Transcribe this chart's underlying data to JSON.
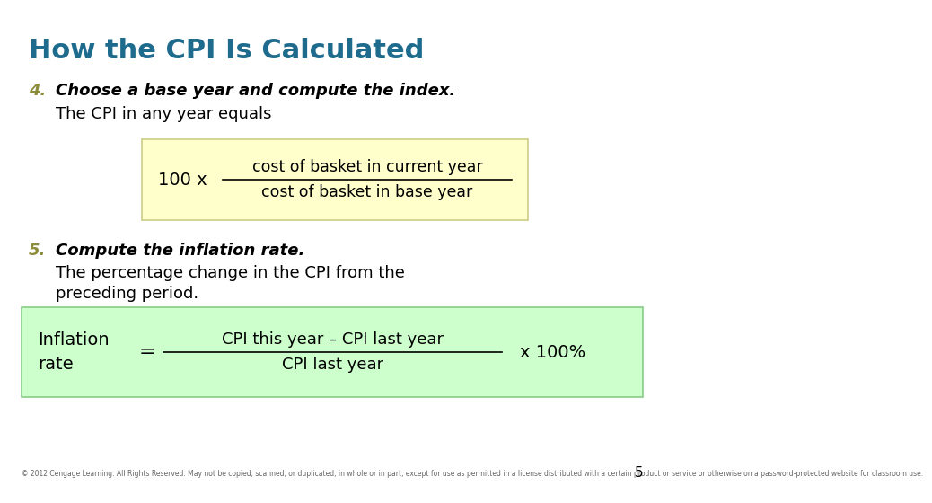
{
  "title": "How the CPI Is Calculated",
  "title_color": "#1F6B8E",
  "title_fontsize": 22,
  "bg_color": "#FFFFFF",
  "item4_number": "4.",
  "item4_bold": "Choose a base year and compute the index.",
  "item4_normal": "The CPI in any year equals",
  "item4_number_color": "#8B8B3A",
  "item4_text_color": "#000000",
  "box1_bg": "#FFFFCC",
  "box1_border": "#CCCC88",
  "box1_text_left": "100 x",
  "box1_numerator": "cost of basket in current year",
  "box1_denominator": "cost of basket in base year",
  "item5_number": "5.",
  "item5_bold": "Compute the inflation rate.",
  "item5_normal1": "The percentage change in the CPI from the",
  "item5_normal2": "preceding period.",
  "item5_number_color": "#8B8B3A",
  "item5_text_color": "#000000",
  "box2_bg": "#CCFFCC",
  "box2_border": "#88CC88",
  "box2_left1": "Inflation",
  "box2_left2": "rate",
  "box2_eq": "=",
  "box2_numerator": "CPI this year – CPI last year",
  "box2_denominator": "CPI last year",
  "box2_right": "x 100%",
  "footer": "© 2012 Cengage Learning. All Rights Reserved. May not be copied, scanned, or duplicated, in whole or in part, except for use as permitted in a license distributed with a certain product or service or otherwise on a password-protected website for classroom use.",
  "footer_color": "#666666",
  "footer_fontsize": 5.5,
  "page_number": "5"
}
